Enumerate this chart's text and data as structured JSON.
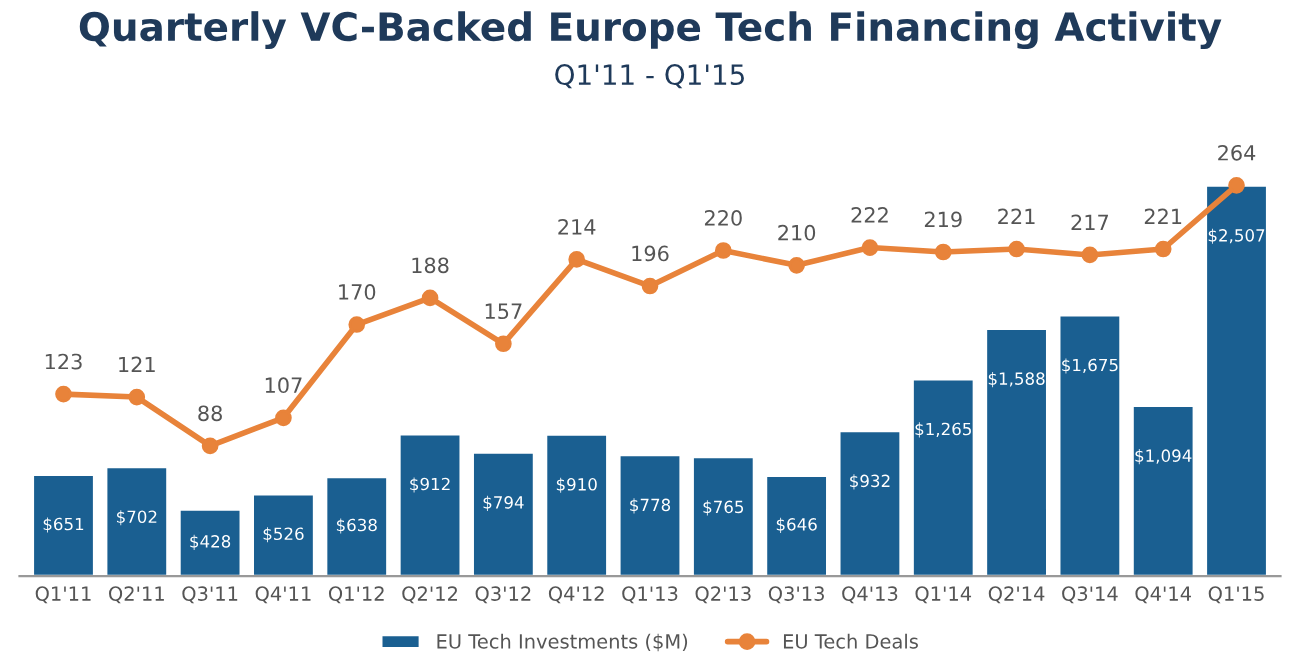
{
  "chart_data": {
    "type": "bar",
    "title": "Quarterly VC-Backed Europe Tech Financing Activity",
    "subtitle": "Q1'11 - Q1'15",
    "categories": [
      "Q1'11",
      "Q2'11",
      "Q3'11",
      "Q4'11",
      "Q1'12",
      "Q2'12",
      "Q3'12",
      "Q4'12",
      "Q1'13",
      "Q2'13",
      "Q3'13",
      "Q4'13",
      "Q1'14",
      "Q2'14",
      "Q3'14",
      "Q4'14",
      "Q1'15"
    ],
    "series": [
      {
        "name": "EU Tech Investments ($M)",
        "color": "#1a5f91",
        "values": [
          651,
          702,
          428,
          526,
          638,
          912,
          794,
          910,
          778,
          765,
          646,
          932,
          1265,
          1588,
          1675,
          1094,
          2507
        ],
        "value_labels": [
          "$651",
          "$702",
          "$428",
          "$526",
          "$638",
          "$912",
          "$794",
          "$910",
          "$778",
          "$765",
          "$646",
          "$932",
          "$1,265",
          "$1,588",
          "$1,675",
          "$1,094",
          "$2,507"
        ]
      },
      {
        "name": "EU Tech Deals",
        "type": "line",
        "axis": "y2",
        "color": "#e8833a",
        "values": [
          123,
          121,
          88,
          107,
          170,
          188,
          157,
          214,
          196,
          220,
          210,
          222,
          219,
          221,
          217,
          221,
          264
        ]
      }
    ],
    "tick_labels": "x",
    "data_labels": true,
    "legend": "bottom",
    "marker": "circle",
    "line_style": "solid",
    "grid": false
  }
}
